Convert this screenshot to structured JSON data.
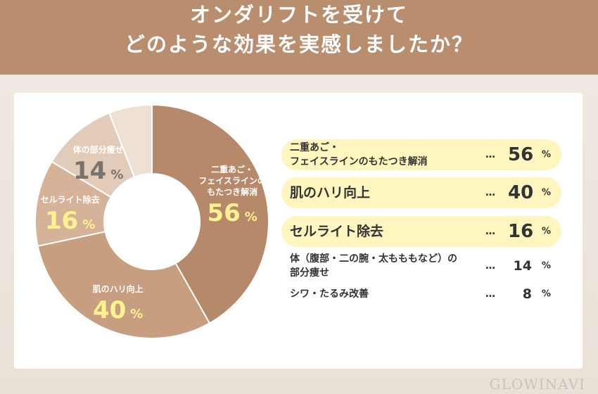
{
  "chart_data": {
    "type": "pie",
    "title": [
      "オンダリフトを受けて",
      "どのような効果を実感しましたか？"
    ],
    "categories": [
      "二重あご・\nフェイスラインのもたつき解消",
      "肌のハリ向上",
      "セルライト除去",
      "体（腹部・二の腕・太もももなど）の\n部分痩せ",
      "シワ・たるみ改善"
    ],
    "slice_labels": [
      "二重あご・\nフェイスラインの\nもたつき解消",
      "肌のハリ向上",
      "セルライト除去",
      "体の部分痩せ",
      null
    ],
    "values": [
      56,
      40,
      16,
      14,
      8
    ],
    "unit": "%",
    "leader": "…",
    "colors": [
      "#b5896a",
      "#c79f80",
      "#d6b398",
      "#e2cbb8",
      "#eee0d3"
    ],
    "value_label_colors": [
      "#fff38f",
      "#fff38f",
      "#fff38f",
      "#7a736d",
      null
    ],
    "highlight": [
      true,
      true,
      true,
      false,
      false
    ],
    "highlight_color": "#fff5bf",
    "brand": "GLOWINAVI"
  }
}
